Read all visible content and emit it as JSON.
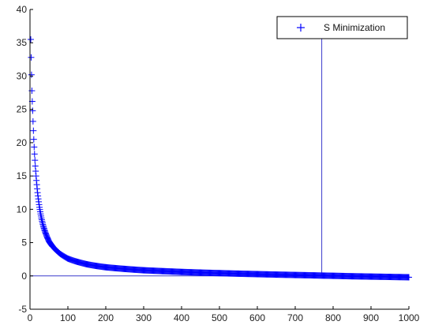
{
  "chart_data": {
    "type": "scatter",
    "title": "",
    "xlabel": "",
    "ylabel": "",
    "xlim": [
      0,
      1000
    ],
    "ylim": [
      -5,
      40
    ],
    "xticks": [
      "0",
      "100",
      "200",
      "300",
      "400",
      "500",
      "600",
      "700",
      "800",
      "900",
      "1000"
    ],
    "yticks": [
      "-5",
      "0",
      "5",
      "10",
      "15",
      "20",
      "25",
      "30",
      "35",
      "40"
    ],
    "grid": false,
    "legend": {
      "position": "top-right",
      "entries": [
        "S Minimization"
      ]
    },
    "series": [
      {
        "name": "S Minimization",
        "marker": "+",
        "color": "#0000ff",
        "x": [
          2,
          3,
          4,
          5,
          6,
          7,
          8,
          9,
          10,
          12,
          14,
          16,
          18,
          20,
          25,
          30,
          35,
          40,
          50,
          60,
          70,
          80,
          100,
          120,
          150,
          175,
          200,
          250,
          300,
          350,
          400,
          450,
          500,
          550,
          600,
          650,
          700,
          750,
          770,
          800,
          850,
          900,
          950,
          1000
        ],
        "y": [
          35.5,
          32.8,
          30.2,
          27.8,
          26.2,
          24.8,
          23.2,
          21.8,
          20.5,
          18.3,
          16.5,
          15.0,
          13.7,
          12.5,
          10.3,
          8.7,
          7.5,
          6.6,
          5.2,
          4.4,
          3.8,
          3.3,
          2.6,
          2.2,
          1.75,
          1.5,
          1.3,
          1.05,
          0.85,
          0.72,
          0.6,
          0.5,
          0.42,
          0.34,
          0.27,
          0.2,
          0.14,
          0.08,
          0.05,
          0.02,
          -0.05,
          -0.1,
          -0.15,
          -0.2
        ]
      }
    ],
    "annotations": [
      {
        "type": "horizontal-line",
        "y": 0,
        "color": "#3a3acc"
      },
      {
        "type": "vertical-line",
        "x": 770,
        "y_range": [
          0,
          36
        ],
        "color": "#3a3acc"
      }
    ]
  },
  "colors": {
    "axis": "#000000",
    "marker": "#0000ff",
    "reference_line": "#3a3acc",
    "background": "#ffffff"
  }
}
